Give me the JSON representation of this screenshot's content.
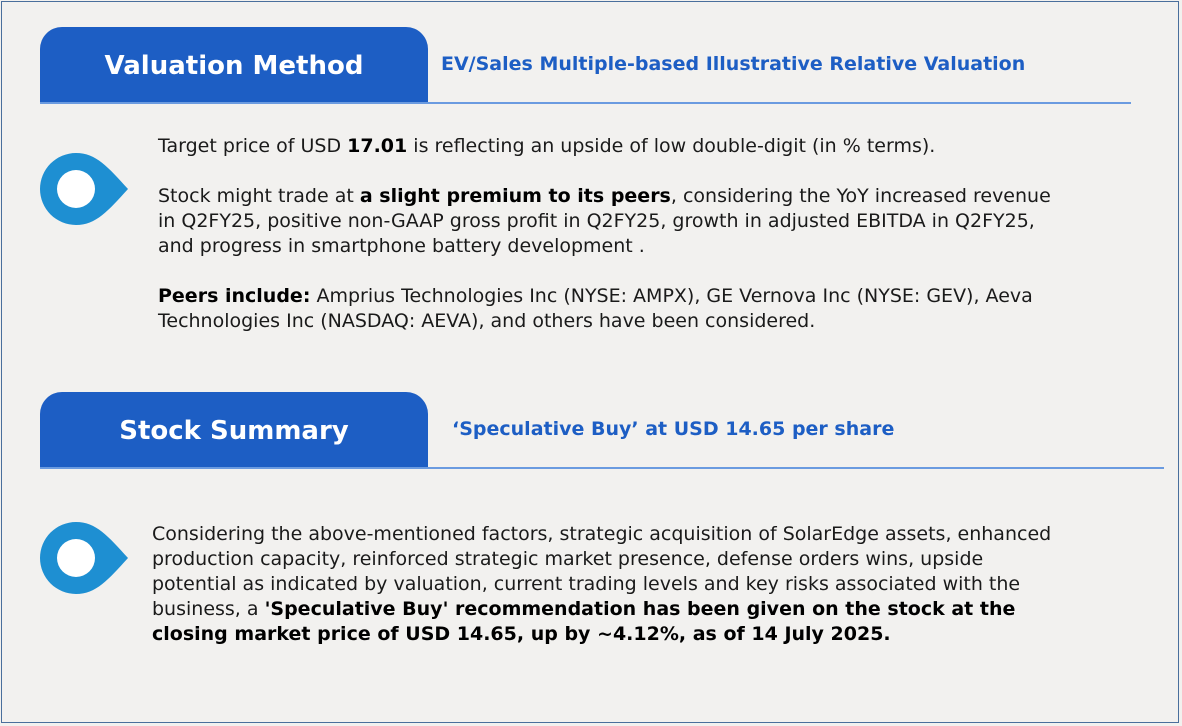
{
  "valuation": {
    "tab_label": "Valuation Method",
    "subtitle": "EV/Sales Multiple-based Illustrative Relative Valuation",
    "p1_a": "Target price of USD ",
    "p1_b": "17.01",
    "p1_c": " is reflecting an upside of low double-digit (in % terms).",
    "p2_a": "Stock might trade at ",
    "p2_b": "a slight premium to its peers",
    "p2_c": ", considering the YoY increased revenue in Q2FY25, positive non-GAAP gross profit in Q2FY25, growth in adjusted EBITDA in Q2FY25, and progress in smartphone battery development .",
    "p3_a": "Peers include:",
    "p3_b": " Amprius Technologies Inc (NYSE: AMPX), GE Vernova Inc (NYSE: GEV), Aeva Technologies Inc (NASDAQ: AEVA), and others have been considered."
  },
  "summary": {
    "tab_label": "Stock Summary",
    "subtitle": "‘Speculative Buy’ at USD 14.65 per share",
    "p_a": "Considering the above-mentioned factors, strategic acquisition of SolarEdge assets, enhanced production capacity, reinforced strategic market presence, defense orders wins, upside potential as indicated by valuation, current trading levels and key risks associated with the business, a ",
    "p_b": "'Speculative Buy' recommendation has been given on the stock at the closing market price of USD 14.65, up by ~4.12%, as of 14 July 2025."
  },
  "colors": {
    "accent": "#1d5ec4",
    "pin": "#1e8fd2",
    "rule": "#6b9be0",
    "background": "#f2f1ef"
  },
  "icons": [
    "location-pin-icon",
    "location-pin-icon"
  ]
}
